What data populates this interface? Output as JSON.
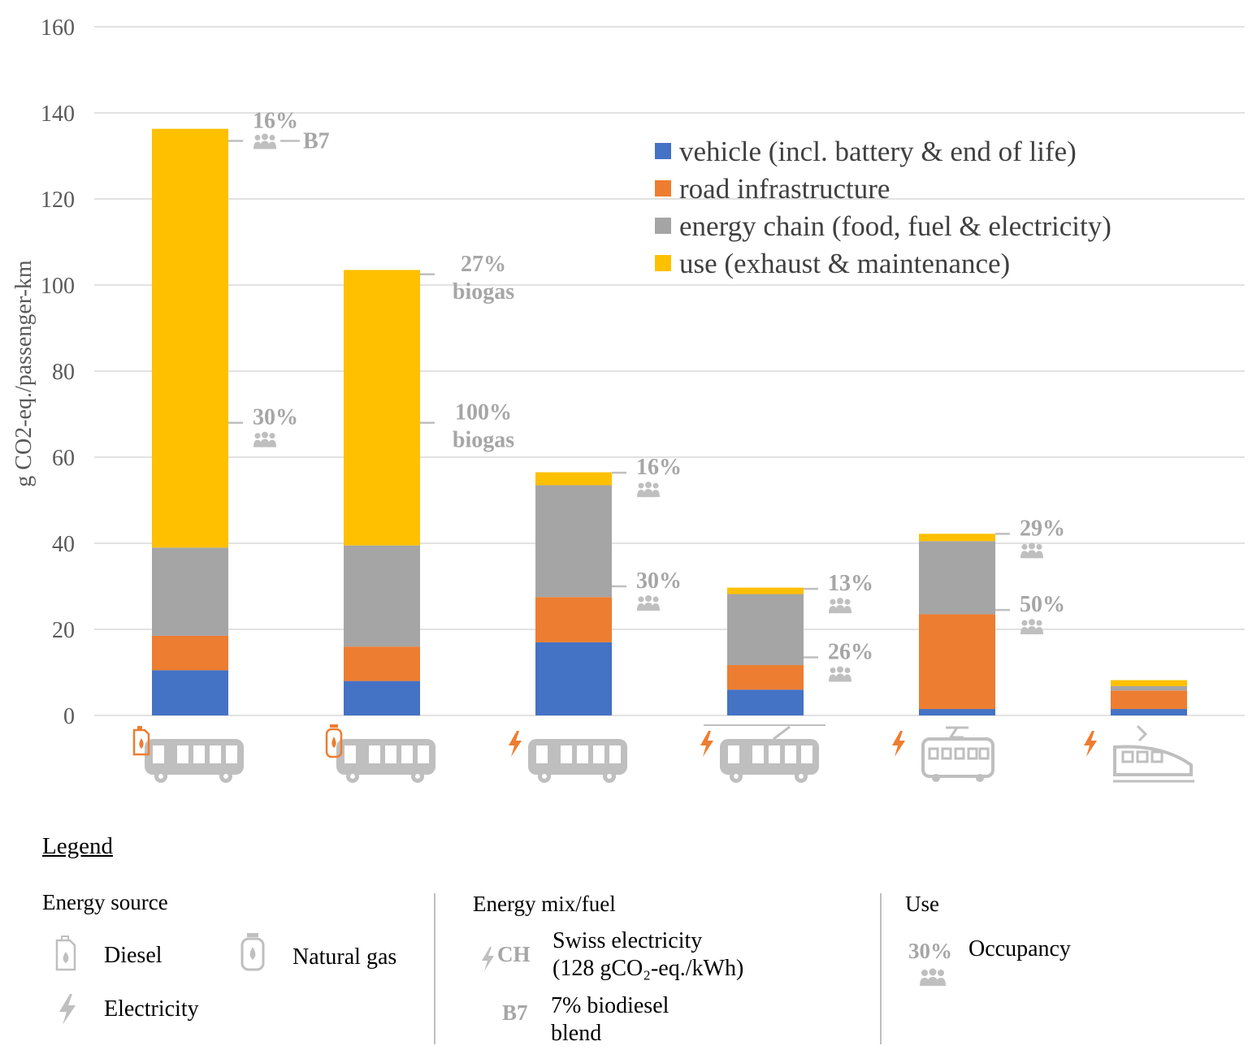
{
  "colors": {
    "vehicle": "#4472c4",
    "road": "#ed7d31",
    "energy": "#a5a5a5",
    "use": "#ffc000",
    "icon_gray": "#bfbfbf",
    "icon_orange": "#ed7d31",
    "grid": "#d9d9d9"
  },
  "chart_data": {
    "type": "bar",
    "stacked": true,
    "ylabel": "g CO2-eq./passenger-km",
    "ylim": [
      0,
      160
    ],
    "yticks": [
      "0",
      "20",
      "40",
      "60",
      "80",
      "100",
      "120",
      "140",
      "160"
    ],
    "categories": [
      "diesel bus",
      "natural gas bus",
      "electric bus",
      "trolleybus",
      "tram",
      "train"
    ],
    "category_icons": [
      {
        "vehicle": "bus-icon",
        "energy": "diesel-icon"
      },
      {
        "vehicle": "bus-icon",
        "energy": "natural-gas-icon"
      },
      {
        "vehicle": "bus-icon",
        "energy": "electricity-icon"
      },
      {
        "vehicle": "trolleybus-icon",
        "energy": "electricity-icon"
      },
      {
        "vehicle": "tram-icon",
        "energy": "electricity-icon"
      },
      {
        "vehicle": "train-icon",
        "energy": "electricity-icon"
      }
    ],
    "series": [
      {
        "name": "vehicle (incl. battery & end of life)",
        "color_key": "vehicle",
        "values": [
          10.5,
          8,
          17,
          6,
          1.5,
          1.5
        ]
      },
      {
        "name": "road infrastructure",
        "color_key": "road",
        "values": [
          8,
          8,
          10.5,
          5.7,
          22,
          4.3
        ]
      },
      {
        "name": "energy chain (food, fuel & electricity)",
        "color_key": "energy",
        "values": [
          20.5,
          23.5,
          26,
          16.5,
          17,
          1
        ]
      },
      {
        "name": "use (exhaust & maintenance)",
        "color_key": "use",
        "values": [
          97.3,
          64,
          3,
          1.5,
          1.7,
          1.4
        ]
      }
    ],
    "legend_position": "top-right",
    "grid": true,
    "annotations": [
      {
        "category": 0,
        "y": 133.5,
        "pct": "16%",
        "icon": true,
        "extra": "B7"
      },
      {
        "category": 0,
        "y": 68,
        "pct": "30%",
        "icon": true
      },
      {
        "category": 1,
        "y": 102.5,
        "pct": "27%",
        "icon": false,
        "note": "biogas"
      },
      {
        "category": 1,
        "y": 68,
        "pct": "100%",
        "icon": false,
        "note": "biogas"
      },
      {
        "category": 2,
        "y": 56.4,
        "pct": "16%",
        "icon": true
      },
      {
        "category": 2,
        "y": 30,
        "pct": "30%",
        "icon": true
      },
      {
        "category": 3,
        "y": 29.4,
        "pct": "13%",
        "icon": true
      },
      {
        "category": 3,
        "y": 13.5,
        "pct": "26%",
        "icon": true
      },
      {
        "category": 4,
        "y": 42.2,
        "pct": "29%",
        "icon": true
      },
      {
        "category": 4,
        "y": 24.5,
        "pct": "50%",
        "icon": true
      }
    ]
  },
  "legend_box": {
    "title": "Legend",
    "energy_source": {
      "heading": "Energy source",
      "diesel": "Diesel",
      "natural_gas": "Natural gas",
      "electricity": "Electricity"
    },
    "energy_mix": {
      "heading": "Energy mix/fuel",
      "ch_tag": "CH",
      "swiss_line1": "Swiss electricity",
      "swiss_line2": "(128 gCO₂-eq./kWh)",
      "b7_tag": "B7",
      "b7_line1": "7% biodiesel",
      "b7_line2": "blend"
    },
    "use": {
      "heading": "Use",
      "pct": "30%",
      "occupancy": "Occupancy"
    }
  }
}
